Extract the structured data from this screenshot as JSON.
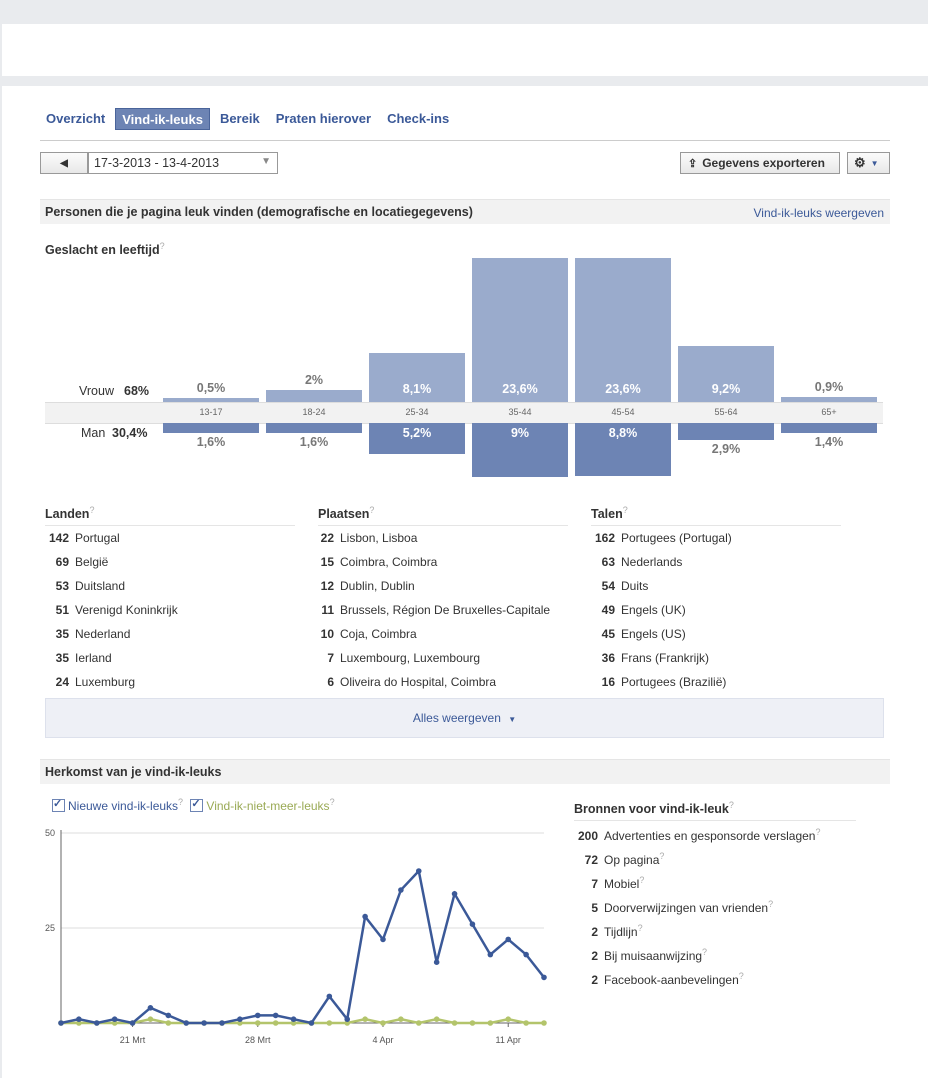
{
  "tabs": [
    "Overzicht",
    "Vind-ik-leuks",
    "Bereik",
    "Praten hierover",
    "Check-ins"
  ],
  "active_tab": "Vind-ik-leuks",
  "date_range": "17-3-2013 - 13-4-2013",
  "export_label": "Gegevens exporteren",
  "demographics": {
    "title": "Personen die je pagina leuk vinden (demografische en locatiegegevens)",
    "link": "Vind-ik-leuks weergeven",
    "gender_age_title": "Geslacht en leeftijd",
    "female_label": "Vrouw",
    "female_total": "68%",
    "male_label": "Man",
    "male_total": "30,4%",
    "age_groups": [
      "13-17",
      "18-24",
      "25-34",
      "35-44",
      "45-54",
      "55-64",
      "65+"
    ],
    "female_values": [
      0.5,
      2,
      8.1,
      23.6,
      23.6,
      9.2,
      0.9
    ],
    "female_labels": [
      "0,5%",
      "2%",
      "8,1%",
      "23,6%",
      "23,6%",
      "9,2%",
      "0,9%"
    ],
    "male_values": [
      1.6,
      1.6,
      5.2,
      9,
      8.8,
      2.9,
      1.4
    ],
    "male_labels": [
      "1,6%",
      "1,6%",
      "5,2%",
      "9%",
      "8,8%",
      "2,9%",
      "1,4%"
    ]
  },
  "countries": {
    "title": "Landen",
    "items": [
      {
        "n": "142",
        "name": "Portugal"
      },
      {
        "n": "69",
        "name": "België"
      },
      {
        "n": "53",
        "name": "Duitsland"
      },
      {
        "n": "51",
        "name": "Verenigd Koninkrijk"
      },
      {
        "n": "35",
        "name": "Nederland"
      },
      {
        "n": "35",
        "name": "Ierland"
      },
      {
        "n": "24",
        "name": "Luxemburg"
      }
    ]
  },
  "cities": {
    "title": "Plaatsen",
    "items": [
      {
        "n": "22",
        "name": "Lisbon, Lisboa"
      },
      {
        "n": "15",
        "name": "Coimbra, Coimbra"
      },
      {
        "n": "12",
        "name": "Dublin, Dublin"
      },
      {
        "n": "11",
        "name": "Brussels, Région De Bruxelles-Capitale"
      },
      {
        "n": "10",
        "name": "Coja, Coimbra"
      },
      {
        "n": "7",
        "name": "Luxembourg, Luxembourg"
      },
      {
        "n": "6",
        "name": "Oliveira do Hospital, Coimbra"
      }
    ]
  },
  "languages": {
    "title": "Talen",
    "items": [
      {
        "n": "162",
        "name": "Portugees (Portugal)"
      },
      {
        "n": "63",
        "name": "Nederlands"
      },
      {
        "n": "54",
        "name": "Duits"
      },
      {
        "n": "49",
        "name": "Engels (UK)"
      },
      {
        "n": "45",
        "name": "Engels (US)"
      },
      {
        "n": "36",
        "name": "Frans (Frankrijk)"
      },
      {
        "n": "16",
        "name": "Portugees (Brazilië)"
      }
    ]
  },
  "show_all": "Alles weergeven",
  "origin": {
    "title": "Herkomst van je vind-ik-leuks",
    "legend_new": "Nieuwe vind-ik-leuks",
    "legend_unlike": "Vind-ik-niet-meer-leuks",
    "sources_title": "Bronnen voor vind-ik-leuk",
    "sources": [
      {
        "n": "200",
        "name": "Advertenties en gesponsorde verslagen"
      },
      {
        "n": "72",
        "name": "Op pagina"
      },
      {
        "n": "7",
        "name": "Mobiel"
      },
      {
        "n": "5",
        "name": "Doorverwijzingen van vrienden"
      },
      {
        "n": "2",
        "name": "Tijdlijn"
      },
      {
        "n": "2",
        "name": "Bij muisaanwijzing"
      },
      {
        "n": "2",
        "name": "Facebook-aanbevelingen"
      }
    ]
  },
  "colors": {
    "female_bar": "#9aabcc",
    "male_bar": "#6d84b4",
    "new_line": "#3b5998",
    "unlike_line": "#b3c46b",
    "link": "#3b5998"
  },
  "chart_data": {
    "type": "line",
    "x": [
      "17 Mrt",
      "18 Mrt",
      "19 Mrt",
      "20 Mrt",
      "21 Mrt",
      "22 Mrt",
      "23 Mrt",
      "24 Mrt",
      "25 Mrt",
      "26 Mrt",
      "27 Mrt",
      "28 Mrt",
      "29 Mrt",
      "30 Mrt",
      "31 Mrt",
      "1 Apr",
      "2 Apr",
      "3 Apr",
      "4 Apr",
      "5 Apr",
      "6 Apr",
      "7 Apr",
      "8 Apr",
      "9 Apr",
      "10 Apr",
      "11 Apr",
      "12 Apr",
      "13 Apr"
    ],
    "x_tick_labels": [
      "21 Mrt",
      "28 Mrt",
      "4 Apr",
      "11 Apr"
    ],
    "y_ticks": [
      50,
      25
    ],
    "ylim": [
      0,
      50
    ],
    "series": [
      {
        "name": "Nieuwe vind-ik-leuks",
        "values": [
          0,
          1,
          0,
          1,
          0,
          4,
          2,
          0,
          0,
          0,
          1,
          2,
          2,
          1,
          0,
          7,
          1,
          28,
          22,
          35,
          40,
          16,
          34,
          26,
          18,
          22,
          18,
          12
        ]
      },
      {
        "name": "Vind-ik-niet-meer-leuks",
        "values": [
          0,
          0,
          0,
          0,
          0,
          1,
          0,
          0,
          0,
          0,
          0,
          0,
          0,
          0,
          0,
          0,
          0,
          1,
          0,
          1,
          0,
          1,
          0,
          0,
          0,
          1,
          0,
          0
        ]
      }
    ]
  }
}
